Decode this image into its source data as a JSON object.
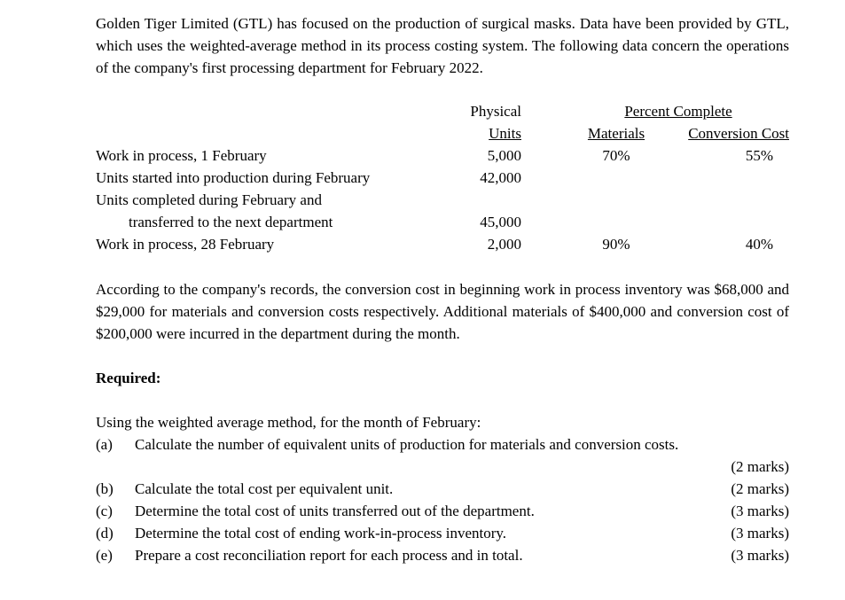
{
  "doc": {
    "intro": "Golden Tiger Limited (GTL) has focused on the production of surgical masks.  Data have been provided by GTL, which uses the weighted-average method in its process costing system.  The following data concern the operations of the company's first processing department for February 2022.",
    "table": {
      "header": {
        "physical": "Physical",
        "units": "Units",
        "percent_complete": "Percent Complete",
        "materials": "Materials",
        "conversion_cost": "Conversion Cost"
      },
      "rows": [
        {
          "label": "Work in process, 1 February",
          "units": "5,000",
          "materials": "70%",
          "conversion": "55%"
        },
        {
          "label": "Units started into production during February",
          "units": "42,000",
          "materials": "",
          "conversion": ""
        },
        {
          "label": "Units completed during February and",
          "units": "",
          "materials": "",
          "conversion": ""
        },
        {
          "label": "transferred to the next department",
          "units": "45,000",
          "materials": "",
          "conversion": ""
        },
        {
          "label": "Work in process, 28 February",
          "units": "2,000",
          "materials": "90%",
          "conversion": "40%"
        }
      ]
    },
    "paragraph2": "According to the company's records, the conversion cost in beginning work in process inventory was $68,000 and $29,000 for materials and conversion costs respectively.  Additional materials of $400,000 and conversion cost of $200,000 were incurred in the department during the month.",
    "required": {
      "label": "Required:",
      "intro": "Using the weighted average method, for the month of February:",
      "items": [
        {
          "id": "(a)",
          "text": "Calculate the number of equivalent units of production for materials and conversion costs.",
          "marks": "(2 marks)"
        },
        {
          "id": "(b)",
          "text": "Calculate the total cost per equivalent unit.",
          "marks": "(2 marks)"
        },
        {
          "id": "(c)",
          "text": "Determine the total cost of units transferred out of the department.",
          "marks": "(3 marks)"
        },
        {
          "id": "(d)",
          "text": "Determine the total cost of ending work-in-process inventory.",
          "marks": "(3 marks)"
        },
        {
          "id": "(e)",
          "text": "Prepare a cost reconciliation report for each process and in total.",
          "marks": "(3 marks)"
        }
      ]
    }
  }
}
